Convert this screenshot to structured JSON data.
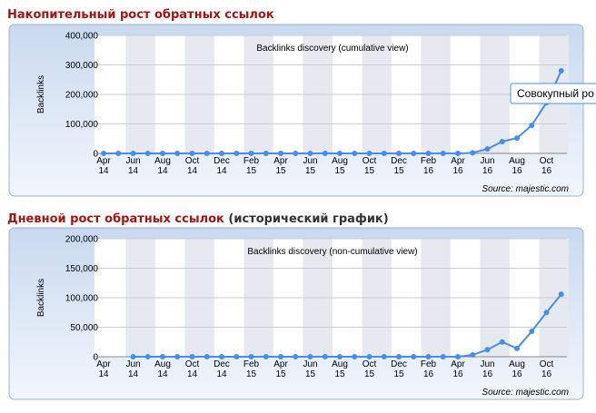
{
  "headings": [
    {
      "title": "Накопительный рост обратных ссылок"
    },
    {
      "title": "Дневной рост обратных ссылок",
      "note": "(исторический график)"
    }
  ],
  "tooltip": "Совокупный ро",
  "chart_data": [
    {
      "type": "line",
      "title": "Backlinks discovery (cumulative view)",
      "ylabel": "Backlinks",
      "source": "Source: majestic.com",
      "categories": [
        "Apr",
        null,
        "Jun",
        null,
        "Aug",
        null,
        "Oct",
        null,
        "Dec",
        null,
        "Feb",
        null,
        "Apr",
        null,
        "Jun",
        null,
        "Aug",
        null,
        "Oct",
        null,
        "Dec",
        null,
        "Feb",
        null,
        "Apr",
        null,
        "Jun",
        null,
        "Aug",
        null,
        "Oct",
        null
      ],
      "category_years": [
        "14",
        null,
        "14",
        null,
        "14",
        null,
        "14",
        null,
        "14",
        null,
        "15",
        null,
        "15",
        null,
        "15",
        null,
        "15",
        null,
        "15",
        null,
        "15",
        null,
        "16",
        null,
        "16",
        null,
        "16",
        null,
        "16",
        null,
        "16",
        null
      ],
      "series": [
        {
          "name": "Backlinks",
          "color": "#4a8de8",
          "values": [
            0,
            0,
            0,
            0,
            0,
            0,
            0,
            0,
            0,
            0,
            0,
            0,
            0,
            0,
            0,
            0,
            0,
            0,
            0,
            0,
            0,
            0,
            0,
            0,
            0,
            2000,
            15000,
            40000,
            52000,
            95000,
            172000,
            280000
          ]
        }
      ],
      "ylim": [
        0,
        400000
      ],
      "yticks": [
        0,
        {
          "value": 100000,
          "label": "100,000"
        },
        {
          "value": 200000,
          "label": "200,000"
        },
        {
          "value": 300000,
          "label": "300,000"
        },
        {
          "value": 400000,
          "label": "400,000"
        }
      ],
      "grid": true
    },
    {
      "type": "line",
      "title": "Backlinks discovery (non-cumulative view)",
      "ylabel": "Backlinks",
      "source": "Source: majestic.com",
      "categories": [
        "Apr",
        null,
        "Jun",
        null,
        "Aug",
        null,
        "Oct",
        null,
        "Dec",
        null,
        "Feb",
        null,
        "Apr",
        null,
        "Jun",
        null,
        "Aug",
        null,
        "Oct",
        null,
        "Dec",
        null,
        "Feb",
        null,
        "Apr",
        null,
        "Jun",
        null,
        "Aug",
        null,
        "Oct",
        null
      ],
      "category_years": [
        "14",
        null,
        "14",
        null,
        "14",
        null,
        "14",
        null,
        "14",
        null,
        "15",
        null,
        "15",
        null,
        "15",
        null,
        "15",
        null,
        "15",
        null,
        "15",
        null,
        "16",
        null,
        "16",
        null,
        "16",
        null,
        "16",
        null,
        "16",
        null
      ],
      "series": [
        {
          "name": "Backlinks",
          "color": "#4a8de8",
          "values": [
            null,
            null,
            0,
            0,
            0,
            0,
            0,
            0,
            0,
            0,
            0,
            0,
            0,
            0,
            0,
            0,
            0,
            0,
            0,
            0,
            0,
            0,
            0,
            0,
            0,
            3000,
            12000,
            25000,
            14000,
            43000,
            75000,
            106000
          ]
        }
      ],
      "ylim": [
        0,
        200000
      ],
      "yticks": [
        0,
        {
          "value": 50000,
          "label": "50,000"
        },
        {
          "value": 100000,
          "label": "100,000"
        },
        {
          "value": 150000,
          "label": "150,000"
        },
        {
          "value": 200000,
          "label": "200,000"
        }
      ],
      "grid": true
    }
  ]
}
